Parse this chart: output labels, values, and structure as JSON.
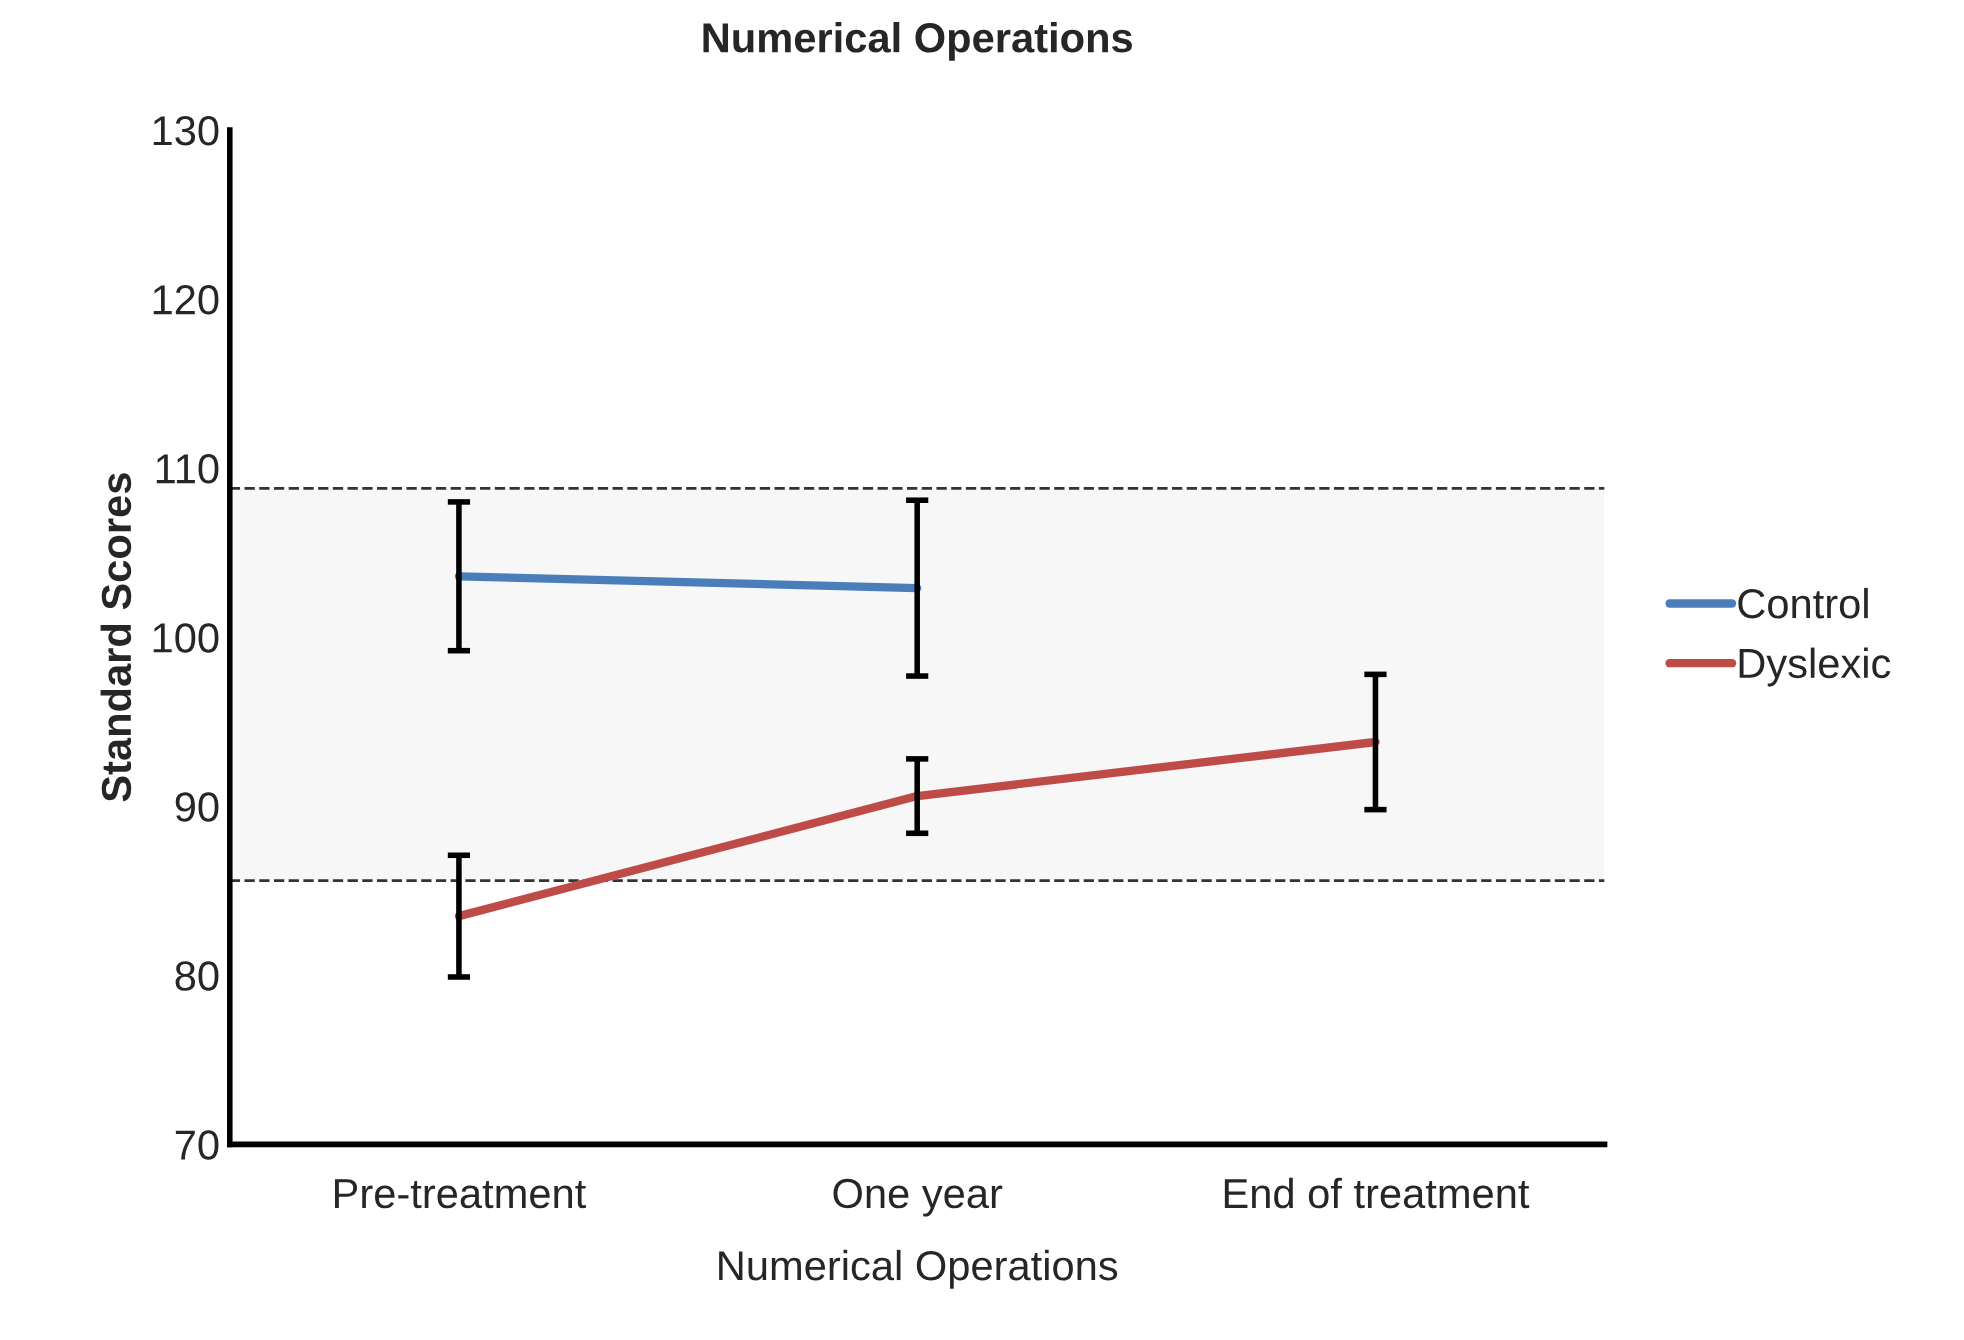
{
  "chart_data": {
    "type": "line",
    "title": "Numerical Operations",
    "xlabel": "Numerical Operations",
    "ylabel": "Standard Scores",
    "categories": [
      "Pre-treatment",
      "One year",
      "End of treatment"
    ],
    "series": [
      {
        "name": "Control",
        "color": "#4a7ebb",
        "values": [
          103.6,
          102.9,
          null
        ],
        "errors": [
          4.4,
          5.2,
          null
        ]
      },
      {
        "name": "Dyslexic",
        "color": "#be4b48",
        "values": [
          83.5,
          90.6,
          93.8
        ],
        "errors": [
          3.6,
          2.2,
          4.0
        ]
      }
    ],
    "ylim": [
      70,
      130
    ],
    "yticks": [
      70,
      80,
      90,
      100,
      110,
      120,
      130
    ],
    "bands": [
      {
        "axis": "y",
        "from": 85.6,
        "to": 108.8,
        "color": "#f7f7f7"
      }
    ],
    "ref_lines": [
      {
        "axis": "y",
        "value": 108.8,
        "line_style": "dashed",
        "color": "#333333"
      },
      {
        "axis": "y",
        "value": 85.6,
        "line_style": "dashed",
        "color": "#333333"
      }
    ],
    "grid": false,
    "legend": "right",
    "marker": "none",
    "line_style": "solid"
  }
}
